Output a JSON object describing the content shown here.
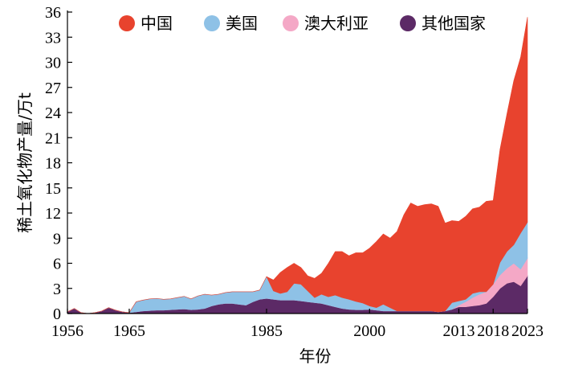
{
  "chart_data": {
    "type": "area",
    "stacked": true,
    "xlabel": "年份",
    "ylabel": "稀土氧化物产量/万t",
    "xlim": [
      1956,
      2023
    ],
    "ylim": [
      0,
      36
    ],
    "yticks": [
      0,
      3,
      6,
      9,
      12,
      15,
      18,
      21,
      24,
      27,
      30,
      33,
      36
    ],
    "xticks": [
      1956,
      1965,
      1985,
      2000,
      2013,
      2018,
      2023
    ],
    "legend_position": "top",
    "grid": false,
    "x": [
      1956,
      1957,
      1958,
      1959,
      1960,
      1961,
      1962,
      1963,
      1964,
      1965,
      1966,
      1967,
      1968,
      1969,
      1970,
      1971,
      1972,
      1973,
      1974,
      1975,
      1976,
      1977,
      1978,
      1979,
      1980,
      1981,
      1982,
      1983,
      1984,
      1985,
      1986,
      1987,
      1988,
      1989,
      1990,
      1991,
      1992,
      1993,
      1994,
      1995,
      1996,
      1997,
      1998,
      1999,
      2000,
      2001,
      2002,
      2003,
      2004,
      2005,
      2006,
      2007,
      2008,
      2009,
      2010,
      2011,
      2012,
      2013,
      2014,
      2015,
      2016,
      2017,
      2018,
      2019,
      2020,
      2021,
      2022,
      2023
    ],
    "series": [
      {
        "name": "其他国家",
        "color": "#5c2a66",
        "values": [
          0.2,
          0.6,
          0.1,
          0.0,
          0.1,
          0.3,
          0.7,
          0.4,
          0.2,
          0.1,
          0.2,
          0.3,
          0.35,
          0.4,
          0.4,
          0.45,
          0.5,
          0.55,
          0.45,
          0.5,
          0.6,
          0.9,
          1.1,
          1.2,
          1.2,
          1.1,
          1.0,
          1.4,
          1.7,
          1.8,
          1.7,
          1.6,
          1.6,
          1.6,
          1.5,
          1.4,
          1.3,
          1.2,
          1.0,
          0.8,
          0.6,
          0.5,
          0.45,
          0.45,
          0.5,
          0.4,
          0.3,
          0.3,
          0.3,
          0.3,
          0.3,
          0.3,
          0.3,
          0.3,
          0.2,
          0.3,
          0.5,
          0.8,
          0.8,
          0.9,
          1.0,
          1.2,
          2.0,
          3.0,
          3.6,
          3.8,
          3.3,
          4.5
        ]
      },
      {
        "name": "澳大利亚",
        "color": "#f4a8c6",
        "values": [
          0,
          0,
          0,
          0,
          0,
          0,
          0,
          0,
          0,
          0,
          0,
          0,
          0,
          0,
          0,
          0,
          0,
          0,
          0,
          0,
          0,
          0,
          0,
          0,
          0,
          0,
          0,
          0,
          0,
          0,
          0,
          0,
          0,
          0,
          0,
          0,
          0,
          0,
          0,
          0,
          0,
          0,
          0,
          0,
          0,
          0,
          0,
          0,
          0,
          0,
          0,
          0,
          0,
          0,
          0,
          0,
          0,
          0.2,
          0.6,
          1.0,
          1.3,
          1.4,
          1.5,
          1.6,
          1.8,
          2.2,
          2.0,
          2.1
        ]
      },
      {
        "name": "美国",
        "color": "#8ec1e6",
        "values": [
          0,
          0,
          0,
          0,
          0,
          0,
          0,
          0,
          0,
          0,
          1.2,
          1.3,
          1.4,
          1.4,
          1.3,
          1.3,
          1.4,
          1.5,
          1.3,
          1.6,
          1.7,
          1.3,
          1.2,
          1.3,
          1.4,
          1.5,
          1.6,
          1.2,
          1.1,
          2.6,
          1.0,
          0.8,
          1.0,
          2.0,
          2.0,
          1.3,
          0.6,
          1.1,
          1.0,
          1.4,
          1.3,
          1.2,
          1.0,
          0.8,
          0.4,
          0.3,
          0.8,
          0.4,
          0.0,
          0.0,
          0.0,
          0.0,
          0.0,
          0.0,
          0.0,
          0.0,
          0.8,
          0.5,
          0.3,
          0.5,
          0.3,
          0.0,
          0.0,
          1.5,
          2.0,
          2.2,
          4.3,
          4.3
        ]
      },
      {
        "name": "中国",
        "color": "#e8432e",
        "values": [
          0,
          0,
          0,
          0,
          0,
          0,
          0,
          0,
          0,
          0,
          0,
          0,
          0,
          0,
          0,
          0,
          0,
          0,
          0,
          0,
          0,
          0,
          0,
          0,
          0,
          0,
          0,
          0,
          0,
          0,
          1.3,
          2.5,
          2.9,
          2.4,
          2.0,
          1.8,
          2.3,
          2.5,
          4.0,
          5.2,
          5.5,
          5.2,
          5.8,
          6.0,
          6.9,
          7.9,
          8.4,
          8.3,
          9.5,
          11.5,
          12.9,
          12.5,
          12.7,
          12.8,
          12.6,
          10.5,
          9.8,
          9.5,
          9.9,
          10.1,
          10.1,
          10.8,
          10.0,
          13.5,
          16.4,
          19.6,
          21.0,
          24.5
        ]
      }
    ]
  }
}
